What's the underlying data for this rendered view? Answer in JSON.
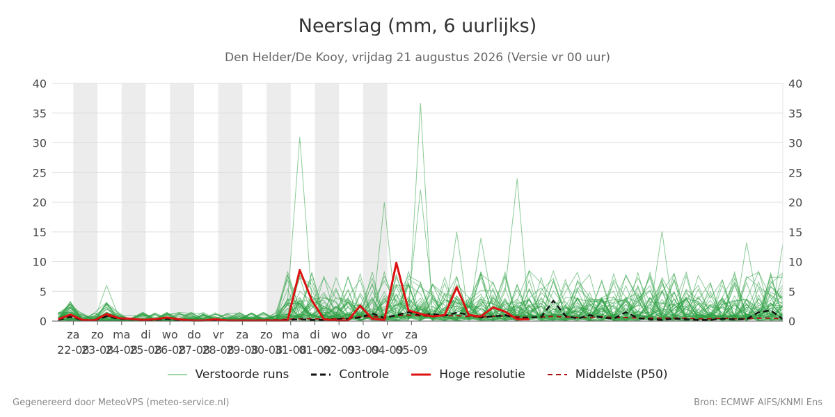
{
  "title": "Neerslag (mm, 6 uurlijks)",
  "subtitle": "Den Helder/De Kooy, vrijdag 21 augustus 2026 (Versie vr 00 uur)",
  "footer": {
    "left": "Gegenereerd door MeteoVPS (meteo-service.nl)",
    "right": "Bron: ECMWF AIFS/KNMI Ens"
  },
  "legend": [
    {
      "label": "Verstoorde runs",
      "color": "#3aa84a",
      "style": "thin"
    },
    {
      "label": "Controle",
      "color": "#111111",
      "style": "dashed"
    },
    {
      "label": "Hoge resolutie",
      "color": "#dd1111",
      "style": "solid"
    },
    {
      "label": "Middelste (P50)",
      "color": "#aa1111",
      "style": "dashed"
    }
  ],
  "chart_data": {
    "type": "line",
    "x_unit": "6-hourly steps from vr 21-08 00 uur",
    "x_range": [
      1,
      61
    ],
    "ylim": [
      0,
      40
    ],
    "yticks": [
      0,
      5,
      10,
      15,
      20,
      25,
      30,
      35,
      40
    ],
    "y_axis_right": true,
    "grid": true,
    "shaded_days": [
      "za 22-08",
      "ma 24-08",
      "wo 26-08",
      "vr 28-08",
      "zo 30-08",
      "di 01-09",
      "do 03-09"
    ],
    "day_ticks": [
      {
        "day": "za",
        "date": "22-08"
      },
      {
        "day": "zo",
        "date": "23-08"
      },
      {
        "day": "ma",
        "date": "24-08"
      },
      {
        "day": "di",
        "date": "25-08"
      },
      {
        "day": "wo",
        "date": "26-08"
      },
      {
        "day": "do",
        "date": "27-08"
      },
      {
        "day": "vr",
        "date": "28-08"
      },
      {
        "day": "za",
        "date": "29-08"
      },
      {
        "day": "zo",
        "date": "30-08"
      },
      {
        "day": "ma",
        "date": "31-08"
      },
      {
        "day": "di",
        "date": "01-09"
      },
      {
        "day": "wo",
        "date": "02-09"
      },
      {
        "day": "do",
        "date": "03-09"
      },
      {
        "day": "vr",
        "date": "04-09"
      },
      {
        "day": "za",
        "date": "05-09"
      }
    ],
    "series": [
      {
        "name": "Hoge resolutie",
        "color": "#dd1111",
        "x": [
          1,
          2,
          3,
          4,
          5,
          6,
          7,
          8,
          9,
          10,
          11,
          12,
          13,
          14,
          15,
          16,
          17,
          18,
          19,
          20,
          21,
          22,
          23,
          24,
          25,
          26,
          27,
          28,
          29,
          30,
          31,
          32,
          33,
          34,
          35,
          36,
          37,
          38,
          39,
          40
        ],
        "values": [
          0.3,
          1.1,
          0.2,
          0.1,
          1.2,
          0.5,
          0.4,
          0.2,
          0.3,
          0.6,
          0.3,
          0.1,
          0.1,
          0.3,
          0.1,
          0.1,
          0.1,
          0.1,
          0.1,
          0.1,
          8.6,
          3.5,
          0.3,
          0.1,
          0.1,
          2.6,
          0.4,
          0.2,
          9.8,
          1.8,
          1.2,
          0.8,
          1.0,
          5.7,
          1.0,
          0.8,
          2.3,
          1.6,
          0.3,
          0.3
        ]
      },
      {
        "name": "Controle",
        "color": "#111111",
        "x": [
          1,
          2,
          3,
          4,
          5,
          6,
          7,
          8,
          9,
          10,
          11,
          12,
          13,
          14,
          15,
          16,
          17,
          18,
          19,
          20,
          21,
          22,
          23,
          24,
          25,
          26,
          27,
          28,
          29,
          30,
          31,
          32,
          33,
          34,
          35,
          36,
          37,
          38,
          39,
          40,
          41,
          42,
          43,
          44,
          45,
          46,
          47,
          48,
          49,
          50,
          51,
          52,
          53,
          54,
          55,
          56,
          57,
          58,
          59,
          60,
          61
        ],
        "values": [
          0.2,
          0.7,
          0.2,
          0.1,
          0.8,
          0.4,
          0.3,
          0.2,
          0.2,
          0.4,
          0.2,
          0.1,
          0.1,
          0.1,
          0.1,
          0.1,
          0.1,
          0.1,
          0.1,
          0.2,
          0.3,
          0.2,
          0.2,
          0.3,
          0.4,
          0.6,
          1.3,
          0.5,
          1.0,
          1.5,
          1.0,
          1.2,
          0.9,
          1.4,
          1.1,
          0.6,
          0.8,
          1.0,
          0.5,
          0.6,
          0.7,
          3.4,
          0.9,
          0.4,
          1.0,
          0.6,
          0.4,
          1.5,
          0.5,
          0.3,
          0.2,
          0.4,
          0.3,
          0.2,
          0.2,
          0.4,
          0.3,
          0.3,
          1.5,
          1.8,
          0.3
        ]
      },
      {
        "name": "Middelste (P50)",
        "color": "#aa1111",
        "x": [
          1,
          2,
          3,
          4,
          5,
          6,
          7,
          8,
          9,
          10,
          11,
          12,
          13,
          14,
          15,
          16,
          17,
          18,
          19,
          20,
          21,
          22,
          23,
          24,
          25,
          26,
          27,
          28,
          29,
          30,
          31,
          32,
          33,
          34,
          35,
          36,
          37,
          38,
          39,
          40,
          41,
          42,
          43,
          44,
          45,
          46,
          47,
          48,
          49,
          50,
          51,
          52,
          53,
          54,
          55,
          56,
          57,
          58,
          59,
          60,
          61
        ],
        "values": [
          0.3,
          0.8,
          0.2,
          0.2,
          0.9,
          0.5,
          0.3,
          0.2,
          0.3,
          0.5,
          0.3,
          0.2,
          0.1,
          0.1,
          0.1,
          0.1,
          0.1,
          0.2,
          0.2,
          0.3,
          0.4,
          0.4,
          0.3,
          0.4,
          0.5,
          0.7,
          0.8,
          0.6,
          0.9,
          1.0,
          0.9,
          0.8,
          0.9,
          0.9,
          0.8,
          0.7,
          0.8,
          0.9,
          0.7,
          0.6,
          0.7,
          0.8,
          0.7,
          0.6,
          0.6,
          0.7,
          0.6,
          0.6,
          0.5,
          0.5,
          0.5,
          0.5,
          0.5,
          0.4,
          0.4,
          0.5,
          0.4,
          0.4,
          0.5,
          0.5,
          0.4
        ]
      }
    ],
    "ensemble_label": "Verstoorde runs",
    "ensemble_peaks": [
      {
        "x": 5,
        "value": 6.0
      },
      {
        "x": 21,
        "value": 31.0
      },
      {
        "x": 28,
        "value": 20.0
      },
      {
        "x": 31,
        "value": 36.7
      },
      {
        "x": 31,
        "value": 22.1
      },
      {
        "x": 34,
        "value": 15.0
      },
      {
        "x": 36,
        "value": 14.0
      },
      {
        "x": 39,
        "value": 24.0
      },
      {
        "x": 51,
        "value": 15.1
      },
      {
        "x": 58,
        "value": 13.2
      },
      {
        "x": 61,
        "value": 13.0
      }
    ]
  }
}
